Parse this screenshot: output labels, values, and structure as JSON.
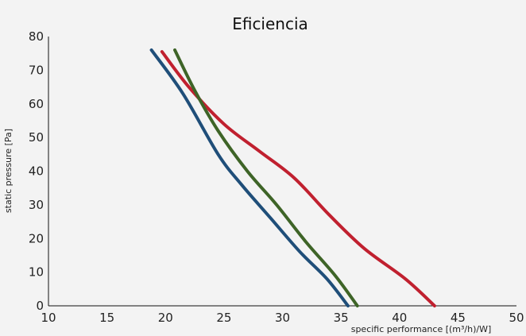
{
  "chart_data": {
    "type": "line",
    "title": "Eficiencia",
    "xlabel": "specific performance  [(m³/h)/W]",
    "ylabel": "static pressure [Pa]",
    "xlim": [
      10,
      50
    ],
    "ylim": [
      0,
      80
    ],
    "xticks": [
      10,
      15,
      20,
      25,
      30,
      35,
      40,
      45,
      50
    ],
    "yticks": [
      0,
      10,
      20,
      30,
      40,
      50,
      60,
      70,
      80
    ],
    "grid": false,
    "legend": "none",
    "series": [
      {
        "color": "#1f4e79",
        "x": [
          18.8,
          21.5,
          24.5,
          26.5,
          29.0,
          31.5,
          33.8,
          35.6
        ],
        "y": [
          76,
          63,
          45,
          36,
          26,
          16,
          8,
          0
        ]
      },
      {
        "color": "#c0202f",
        "x": [
          19.7,
          22.0,
          25.0,
          28.0,
          31.0,
          34.0,
          37.0,
          40.5,
          43.0
        ],
        "y": [
          75.5,
          65,
          54,
          46,
          38,
          27,
          17,
          8,
          0
        ]
      },
      {
        "color": "#3e6427",
        "x": [
          20.8,
          22.5,
          24.5,
          27.0,
          29.5,
          32.0,
          34.5,
          36.4
        ],
        "y": [
          76,
          64,
          52,
          40,
          30,
          19,
          9,
          0
        ]
      }
    ]
  }
}
